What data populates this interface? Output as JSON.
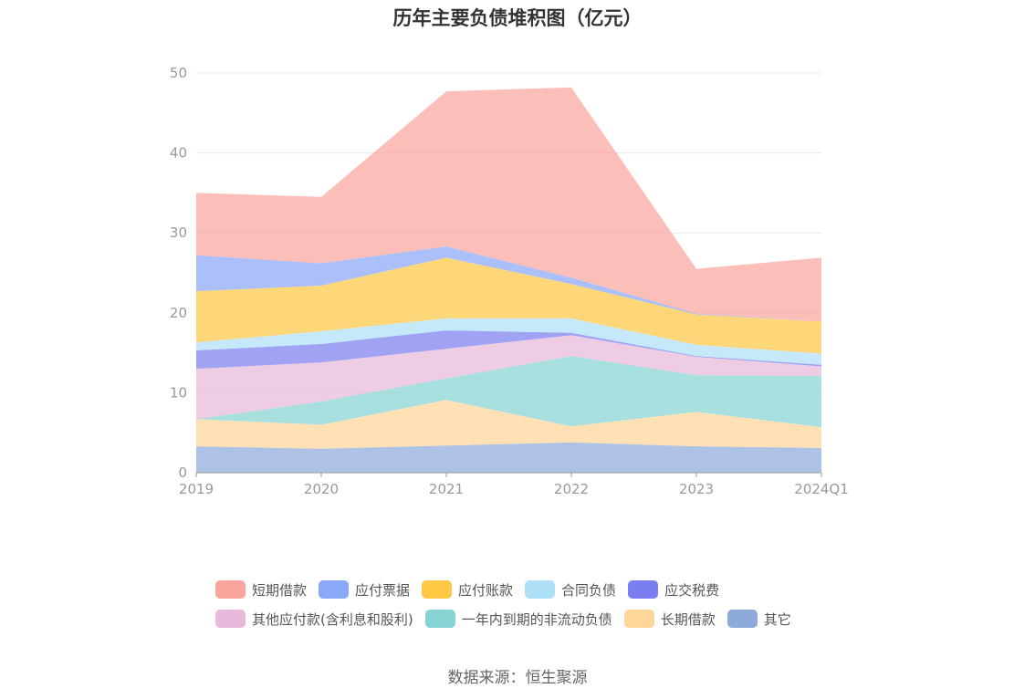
{
  "chart_data": {
    "type": "area",
    "stacked": true,
    "title": "历年主要负债堆积图（亿元）",
    "categories": [
      "2019",
      "2020",
      "2021",
      "2022",
      "2023",
      "2024Q1"
    ],
    "ylim": [
      0,
      50
    ],
    "yticks": [
      0,
      10,
      20,
      30,
      40,
      50
    ],
    "grid": true,
    "legend_position": "bottom",
    "series": [
      {
        "name": "其它",
        "color": "#8eaadb",
        "values": [
          3.3,
          3.0,
          3.4,
          3.8,
          3.3,
          3.1
        ]
      },
      {
        "name": "长期借款",
        "color": "#ffd699",
        "values": [
          3.4,
          3.0,
          5.7,
          2.0,
          4.3,
          2.6
        ]
      },
      {
        "name": "一年内到期的非流动负债",
        "color": "#86d4d4",
        "values": [
          0.0,
          2.9,
          2.7,
          8.8,
          4.6,
          6.4
        ]
      },
      {
        "name": "其他应付款(含利息和股利)",
        "color": "#e8b9da",
        "values": [
          6.3,
          4.9,
          3.7,
          2.6,
          2.3,
          1.2
        ]
      },
      {
        "name": "应交税费",
        "color": "#7b7ef0",
        "values": [
          2.3,
          2.3,
          2.3,
          0.3,
          0.1,
          0.2
        ]
      },
      {
        "name": "合同负债",
        "color": "#aee0f8",
        "values": [
          1.0,
          1.6,
          1.5,
          1.8,
          1.4,
          1.4
        ]
      },
      {
        "name": "应付账款",
        "color": "#ffc845",
        "values": [
          6.4,
          5.7,
          7.6,
          4.3,
          3.8,
          4.0
        ]
      },
      {
        "name": "应付票据",
        "color": "#8aa8f8",
        "values": [
          4.5,
          2.8,
          1.4,
          0.8,
          0.1,
          0.0
        ]
      },
      {
        "name": "短期借款",
        "color": "#f9a59e",
        "values": [
          7.8,
          8.3,
          19.4,
          23.8,
          5.6,
          8.0
        ]
      }
    ]
  },
  "legend_rows": [
    [
      {
        "name": "短期借款",
        "color": "#f9a59e"
      },
      {
        "name": "应付票据",
        "color": "#8aa8f8"
      },
      {
        "name": "应付账款",
        "color": "#ffc845"
      },
      {
        "name": "合同负债",
        "color": "#aee0f8"
      },
      {
        "name": "应交税费",
        "color": "#7b7ef0"
      }
    ],
    [
      {
        "name": "其他应付款(含利息和股利)",
        "color": "#e8b9da"
      },
      {
        "name": "一年内到期的非流动负债",
        "color": "#86d4d4"
      },
      {
        "name": "长期借款",
        "color": "#ffd699"
      },
      {
        "name": "其它",
        "color": "#8eaadb"
      }
    ]
  ],
  "source_note": "数据来源：恒生聚源"
}
